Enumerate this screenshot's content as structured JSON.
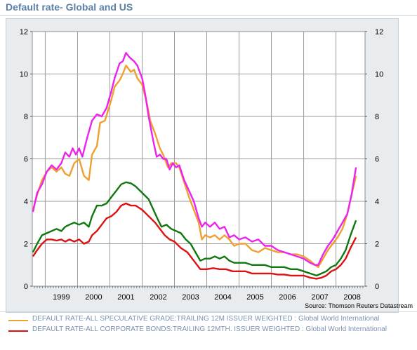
{
  "title": "Default rate- Global and US",
  "source": "Source: Thomson Reuters Datastream",
  "chart_data": {
    "type": "line",
    "title": "Default rate- Global and US",
    "xlabel": "",
    "ylabel": "",
    "ylim": [
      0,
      12
    ],
    "yticks": [
      "0",
      "2",
      "4",
      "6",
      "8",
      "10",
      "12"
    ],
    "xticks": [
      "1999",
      "2000",
      "2001",
      "2002",
      "2003",
      "2004",
      "2005",
      "2006",
      "2007",
      "2008"
    ],
    "x_range": [
      1998.6,
      2008.9
    ],
    "grid": true,
    "legend_position": "bottom",
    "series": [
      {
        "name": "DEFAULT RATE-ALL SPECULATIVE GRADE:TRAILING 12M ISSUER WEIGHTED : Global World International",
        "color": "#f0a030",
        "points": [
          [
            1998.62,
            3.6
          ],
          [
            1998.75,
            4.3
          ],
          [
            1998.9,
            5.0
          ],
          [
            1999.05,
            5.4
          ],
          [
            1999.2,
            5.6
          ],
          [
            1999.35,
            5.4
          ],
          [
            1999.5,
            5.6
          ],
          [
            1999.62,
            5.3
          ],
          [
            1999.75,
            5.2
          ],
          [
            1999.9,
            5.8
          ],
          [
            2000.05,
            6.0
          ],
          [
            2000.2,
            5.2
          ],
          [
            2000.35,
            5.0
          ],
          [
            2000.45,
            6.2
          ],
          [
            2000.6,
            6.6
          ],
          [
            2000.7,
            7.7
          ],
          [
            2000.85,
            7.8
          ],
          [
            2000.95,
            8.3
          ],
          [
            2001.05,
            8.8
          ],
          [
            2001.15,
            9.4
          ],
          [
            2001.3,
            9.7
          ],
          [
            2001.4,
            10.0
          ],
          [
            2001.5,
            10.4
          ],
          [
            2001.65,
            10.1
          ],
          [
            2001.75,
            10.2
          ],
          [
            2001.85,
            9.8
          ],
          [
            2002.0,
            9.5
          ],
          [
            2002.15,
            8.6
          ],
          [
            2002.25,
            7.8
          ],
          [
            2002.4,
            7.2
          ],
          [
            2002.55,
            6.5
          ],
          [
            2002.65,
            6.2
          ],
          [
            2002.8,
            5.6
          ],
          [
            2002.9,
            5.8
          ],
          [
            2003.05,
            5.8
          ],
          [
            2003.15,
            5.6
          ],
          [
            2003.3,
            4.9
          ],
          [
            2003.45,
            4.2
          ],
          [
            2003.6,
            3.6
          ],
          [
            2003.75,
            3.0
          ],
          [
            2003.85,
            2.2
          ],
          [
            2003.95,
            2.4
          ],
          [
            2004.1,
            2.3
          ],
          [
            2004.25,
            2.4
          ],
          [
            2004.4,
            2.2
          ],
          [
            2004.55,
            2.4
          ],
          [
            2004.7,
            2.2
          ],
          [
            2004.85,
            1.9
          ],
          [
            2005.0,
            2.0
          ],
          [
            2005.2,
            2.0
          ],
          [
            2005.4,
            1.7
          ],
          [
            2005.6,
            1.6
          ],
          [
            2005.8,
            1.8
          ],
          [
            2006.0,
            1.7
          ],
          [
            2006.2,
            1.6
          ],
          [
            2006.4,
            1.6
          ],
          [
            2006.6,
            1.5
          ],
          [
            2006.8,
            1.5
          ],
          [
            2007.0,
            1.4
          ],
          [
            2007.2,
            1.2
          ],
          [
            2007.35,
            1.0
          ],
          [
            2007.45,
            0.9
          ],
          [
            2007.6,
            1.3
          ],
          [
            2007.75,
            1.7
          ],
          [
            2007.9,
            2.0
          ],
          [
            2008.05,
            2.3
          ],
          [
            2008.2,
            2.7
          ],
          [
            2008.35,
            3.4
          ],
          [
            2008.5,
            4.4
          ],
          [
            2008.62,
            5.2
          ]
        ]
      },
      {
        "name": "DEFAULT RATE-ALL CORPORATE BONDS:TRAILING 12MTH. ISSUER WEIGHTED : Global World International",
        "color": "#dd1111",
        "points": [
          [
            1998.62,
            1.4
          ],
          [
            1998.75,
            1.7
          ],
          [
            1998.9,
            2.0
          ],
          [
            1999.05,
            2.2
          ],
          [
            1999.2,
            2.2
          ],
          [
            1999.35,
            2.15
          ],
          [
            1999.5,
            2.2
          ],
          [
            1999.62,
            2.1
          ],
          [
            1999.75,
            2.2
          ],
          [
            1999.9,
            2.1
          ],
          [
            2000.05,
            2.2
          ],
          [
            2000.2,
            2.0
          ],
          [
            2000.35,
            2.1
          ],
          [
            2000.45,
            2.4
          ],
          [
            2000.6,
            2.6
          ],
          [
            2000.75,
            2.9
          ],
          [
            2000.9,
            3.2
          ],
          [
            2001.05,
            3.3
          ],
          [
            2001.2,
            3.5
          ],
          [
            2001.35,
            3.8
          ],
          [
            2001.5,
            3.9
          ],
          [
            2001.65,
            3.8
          ],
          [
            2001.8,
            3.8
          ],
          [
            2002.0,
            3.6
          ],
          [
            2002.2,
            3.3
          ],
          [
            2002.4,
            3.0
          ],
          [
            2002.55,
            2.7
          ],
          [
            2002.7,
            2.4
          ],
          [
            2002.85,
            2.2
          ],
          [
            2003.0,
            2.1
          ],
          [
            2003.2,
            1.8
          ],
          [
            2003.4,
            1.6
          ],
          [
            2003.6,
            1.2
          ],
          [
            2003.8,
            0.8
          ],
          [
            2004.0,
            0.8
          ],
          [
            2004.2,
            0.85
          ],
          [
            2004.4,
            0.8
          ],
          [
            2004.6,
            0.8
          ],
          [
            2004.8,
            0.7
          ],
          [
            2005.0,
            0.7
          ],
          [
            2005.2,
            0.7
          ],
          [
            2005.4,
            0.6
          ],
          [
            2005.6,
            0.6
          ],
          [
            2005.8,
            0.6
          ],
          [
            2006.0,
            0.6
          ],
          [
            2006.2,
            0.55
          ],
          [
            2006.4,
            0.55
          ],
          [
            2006.6,
            0.5
          ],
          [
            2006.8,
            0.5
          ],
          [
            2007.0,
            0.5
          ],
          [
            2007.2,
            0.4
          ],
          [
            2007.4,
            0.35
          ],
          [
            2007.55,
            0.4
          ],
          [
            2007.7,
            0.5
          ],
          [
            2007.85,
            0.7
          ],
          [
            2008.0,
            0.8
          ],
          [
            2008.15,
            1.0
          ],
          [
            2008.3,
            1.3
          ],
          [
            2008.45,
            1.8
          ],
          [
            2008.62,
            2.3
          ]
        ]
      },
      {
        "name": "",
        "color": "#ee22ee",
        "points": [
          [
            1998.62,
            3.5
          ],
          [
            1998.75,
            4.4
          ],
          [
            1998.9,
            4.8
          ],
          [
            1999.05,
            5.4
          ],
          [
            1999.2,
            5.7
          ],
          [
            1999.35,
            5.5
          ],
          [
            1999.5,
            5.8
          ],
          [
            1999.62,
            6.3
          ],
          [
            1999.75,
            6.1
          ],
          [
            1999.85,
            6.5
          ],
          [
            1999.95,
            6.2
          ],
          [
            2000.05,
            6.5
          ],
          [
            2000.15,
            6.1
          ],
          [
            2000.3,
            7.0
          ],
          [
            2000.45,
            7.8
          ],
          [
            2000.6,
            8.1
          ],
          [
            2000.75,
            8.0
          ],
          [
            2000.9,
            8.4
          ],
          [
            2001.05,
            9.2
          ],
          [
            2001.15,
            9.8
          ],
          [
            2001.3,
            10.5
          ],
          [
            2001.4,
            10.6
          ],
          [
            2001.5,
            11.0
          ],
          [
            2001.6,
            10.8
          ],
          [
            2001.75,
            10.6
          ],
          [
            2001.85,
            10.4
          ],
          [
            2002.0,
            9.8
          ],
          [
            2002.1,
            9.0
          ],
          [
            2002.2,
            8.0
          ],
          [
            2002.35,
            6.8
          ],
          [
            2002.45,
            6.1
          ],
          [
            2002.55,
            6.2
          ],
          [
            2002.65,
            6.0
          ],
          [
            2002.75,
            6.0
          ],
          [
            2002.85,
            5.5
          ],
          [
            2002.95,
            5.8
          ],
          [
            2003.05,
            5.6
          ],
          [
            2003.15,
            5.7
          ],
          [
            2003.3,
            5.0
          ],
          [
            2003.45,
            4.5
          ],
          [
            2003.6,
            4.0
          ],
          [
            2003.75,
            3.2
          ],
          [
            2003.85,
            2.8
          ],
          [
            2003.95,
            3.0
          ],
          [
            2004.1,
            2.8
          ],
          [
            2004.25,
            3.0
          ],
          [
            2004.4,
            2.7
          ],
          [
            2004.55,
            2.8
          ],
          [
            2004.7,
            2.3
          ],
          [
            2004.85,
            2.4
          ],
          [
            2005.0,
            2.2
          ],
          [
            2005.2,
            2.3
          ],
          [
            2005.4,
            2.1
          ],
          [
            2005.6,
            2.2
          ],
          [
            2005.8,
            1.9
          ],
          [
            2006.0,
            1.9
          ],
          [
            2006.2,
            1.7
          ],
          [
            2006.4,
            1.6
          ],
          [
            2006.6,
            1.5
          ],
          [
            2006.8,
            1.4
          ],
          [
            2007.0,
            1.3
          ],
          [
            2007.2,
            1.1
          ],
          [
            2007.35,
            1.0
          ],
          [
            2007.45,
            1.0
          ],
          [
            2007.6,
            1.5
          ],
          [
            2007.75,
            1.9
          ],
          [
            2007.9,
            2.2
          ],
          [
            2008.05,
            2.6
          ],
          [
            2008.2,
            3.0
          ],
          [
            2008.35,
            3.4
          ],
          [
            2008.48,
            4.3
          ],
          [
            2008.62,
            5.6
          ]
        ]
      },
      {
        "name": "",
        "color": "#117711",
        "points": [
          [
            1998.62,
            1.6
          ],
          [
            1998.75,
            2.0
          ],
          [
            1998.9,
            2.4
          ],
          [
            1999.05,
            2.5
          ],
          [
            1999.2,
            2.6
          ],
          [
            1999.35,
            2.7
          ],
          [
            1999.5,
            2.6
          ],
          [
            1999.62,
            2.8
          ],
          [
            1999.75,
            2.9
          ],
          [
            1999.9,
            3.0
          ],
          [
            2000.05,
            2.9
          ],
          [
            2000.2,
            3.0
          ],
          [
            2000.35,
            2.8
          ],
          [
            2000.45,
            3.3
          ],
          [
            2000.6,
            3.8
          ],
          [
            2000.75,
            3.8
          ],
          [
            2000.9,
            3.9
          ],
          [
            2001.05,
            4.2
          ],
          [
            2001.2,
            4.5
          ],
          [
            2001.35,
            4.8
          ],
          [
            2001.5,
            4.9
          ],
          [
            2001.65,
            4.85
          ],
          [
            2001.8,
            4.7
          ],
          [
            2002.0,
            4.4
          ],
          [
            2002.2,
            4.1
          ],
          [
            2002.35,
            3.6
          ],
          [
            2002.5,
            3.1
          ],
          [
            2002.6,
            2.8
          ],
          [
            2002.75,
            2.9
          ],
          [
            2002.9,
            2.7
          ],
          [
            2003.05,
            2.6
          ],
          [
            2003.2,
            2.5
          ],
          [
            2003.35,
            2.2
          ],
          [
            2003.5,
            2.0
          ],
          [
            2003.65,
            1.6
          ],
          [
            2003.8,
            1.2
          ],
          [
            2003.95,
            1.3
          ],
          [
            2004.1,
            1.3
          ],
          [
            2004.25,
            1.4
          ],
          [
            2004.4,
            1.3
          ],
          [
            2004.55,
            1.4
          ],
          [
            2004.7,
            1.2
          ],
          [
            2004.85,
            1.1
          ],
          [
            2005.0,
            1.1
          ],
          [
            2005.2,
            1.1
          ],
          [
            2005.4,
            1.0
          ],
          [
            2005.6,
            1.0
          ],
          [
            2005.8,
            1.0
          ],
          [
            2006.0,
            0.9
          ],
          [
            2006.2,
            0.9
          ],
          [
            2006.4,
            0.9
          ],
          [
            2006.6,
            0.8
          ],
          [
            2006.8,
            0.8
          ],
          [
            2007.0,
            0.7
          ],
          [
            2007.2,
            0.6
          ],
          [
            2007.4,
            0.5
          ],
          [
            2007.55,
            0.6
          ],
          [
            2007.7,
            0.7
          ],
          [
            2007.85,
            0.9
          ],
          [
            2008.0,
            1.0
          ],
          [
            2008.15,
            1.3
          ],
          [
            2008.3,
            1.7
          ],
          [
            2008.45,
            2.4
          ],
          [
            2008.62,
            3.1
          ]
        ]
      }
    ]
  },
  "legend": [
    {
      "label": "DEFAULT RATE-ALL SPECULATIVE GRADE:TRAILING 12M ISSUER WEIGHTED : Global World International",
      "color": "#f0a030"
    },
    {
      "label": "DEFAULT RATE-ALL CORPORATE BONDS:TRAILING 12MTH. ISSUER WEIGHTED : Global World International",
      "color": "#dd1111"
    }
  ]
}
